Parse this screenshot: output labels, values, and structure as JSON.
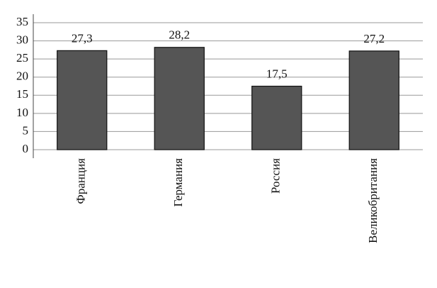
{
  "chart_data": {
    "type": "bar",
    "categories": [
      "Франция",
      "Германия",
      "Россия",
      "Великобритания"
    ],
    "values": [
      27.3,
      28.2,
      17.5,
      27.2
    ],
    "value_labels": [
      "27,3",
      "28,2",
      "17,5",
      "27,2"
    ],
    "color": "#555555",
    "ylim": [
      0,
      35
    ],
    "yticks": [
      0,
      5,
      10,
      15,
      20,
      25,
      30,
      35
    ],
    "grid": true
  }
}
